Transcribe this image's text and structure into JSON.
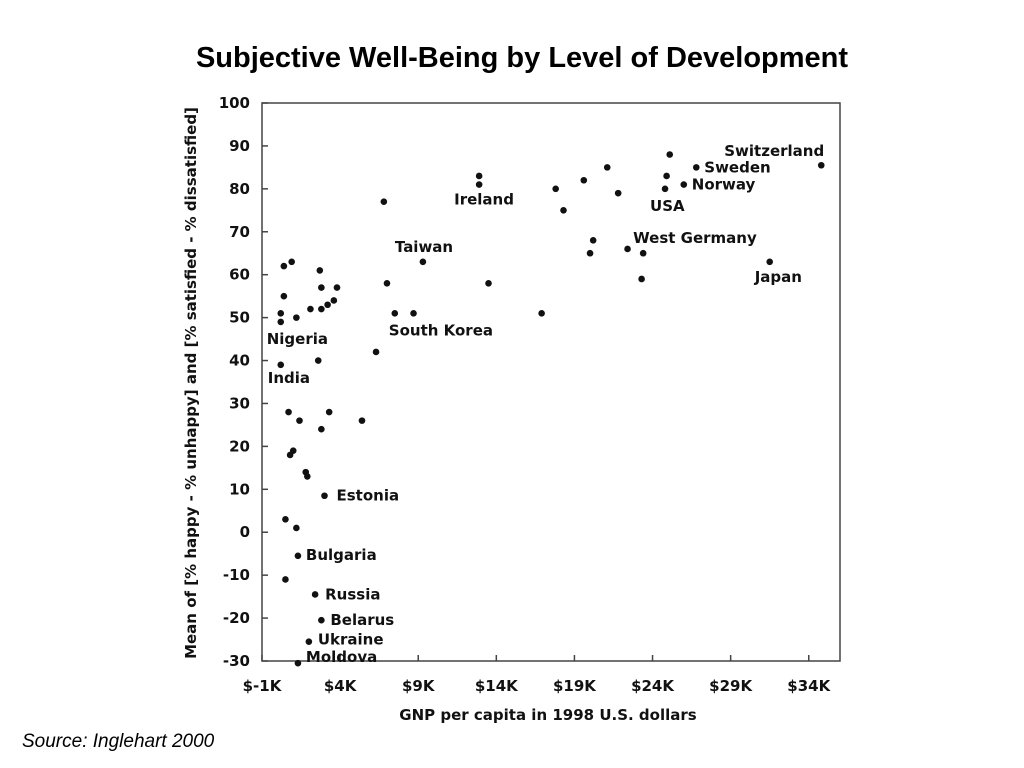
{
  "slide": {
    "title": "Subjective Well-Being by Level of Development",
    "source": "Source: Inglehart 2000"
  },
  "chart_data": {
    "type": "scatter",
    "title": "Subjective Well-Being by Level of Development",
    "xlabel": "GNP per capita in 1998 U.S. dollars",
    "ylabel": "Mean of [% happy - % unhappy] and [% satisfied - % dissatisfied]",
    "xlim": [
      -1000,
      36000
    ],
    "ylim": [
      -30,
      100
    ],
    "xticks": [
      -1000,
      4000,
      9000,
      14000,
      19000,
      24000,
      29000,
      34000
    ],
    "xtick_labels": [
      "$-1K",
      "$4K",
      "$9K",
      "$14K",
      "$19K",
      "$24K",
      "$29K",
      "$34K"
    ],
    "yticks": [
      -30,
      -20,
      -10,
      0,
      10,
      20,
      30,
      40,
      50,
      60,
      70,
      80,
      90,
      100
    ],
    "ytick_labels": [
      "-30",
      "-20",
      "-10",
      "0",
      "10",
      "20",
      "30",
      "40",
      "50",
      "60",
      "70",
      "80",
      "90",
      "100"
    ],
    "grid": false,
    "points": [
      {
        "x": 34800,
        "y": 85.5,
        "label": "Switzerland"
      },
      {
        "x": 26800,
        "y": 85,
        "label": "Sweden"
      },
      {
        "x": 26000,
        "y": 81,
        "label": "Norway"
      },
      {
        "x": 24800,
        "y": 80,
        "label": "USA"
      },
      {
        "x": 23400,
        "y": 65,
        "label": "West Germany"
      },
      {
        "x": 31500,
        "y": 63,
        "label": "Japan"
      },
      {
        "x": 12900,
        "y": 81,
        "label": "Ireland"
      },
      {
        "x": 9300,
        "y": 63,
        "label": "Taiwan"
      },
      {
        "x": 7500,
        "y": 51,
        "label": "South Korea"
      },
      {
        "x": 200,
        "y": 49,
        "label": "Nigeria"
      },
      {
        "x": 200,
        "y": 39,
        "label": "India"
      },
      {
        "x": 3000,
        "y": 8.5,
        "label": "Estonia"
      },
      {
        "x": 1300,
        "y": -5.5,
        "label": "Bulgaria"
      },
      {
        "x": 2400,
        "y": -14.5,
        "label": "Russia"
      },
      {
        "x": 2800,
        "y": -20.5,
        "label": "Belarus"
      },
      {
        "x": 2000,
        "y": -25.5,
        "label": "Ukraine"
      },
      {
        "x": 1300,
        "y": -30.5,
        "label": "Moldova"
      },
      {
        "x": 25100,
        "y": 88
      },
      {
        "x": 24900,
        "y": 83
      },
      {
        "x": 21100,
        "y": 85
      },
      {
        "x": 21800,
        "y": 79
      },
      {
        "x": 19600,
        "y": 82
      },
      {
        "x": 17800,
        "y": 80
      },
      {
        "x": 18300,
        "y": 75
      },
      {
        "x": 12900,
        "y": 83
      },
      {
        "x": 20000,
        "y": 65
      },
      {
        "x": 20200,
        "y": 68
      },
      {
        "x": 22400,
        "y": 66
      },
      {
        "x": 23300,
        "y": 59
      },
      {
        "x": 16900,
        "y": 51
      },
      {
        "x": 13500,
        "y": 58
      },
      {
        "x": 8700,
        "y": 51
      },
      {
        "x": 6800,
        "y": 77
      },
      {
        "x": 7000,
        "y": 58
      },
      {
        "x": 6300,
        "y": 42
      },
      {
        "x": 5400,
        "y": 26
      },
      {
        "x": 400,
        "y": 62
      },
      {
        "x": 900,
        "y": 63
      },
      {
        "x": 400,
        "y": 55
      },
      {
        "x": 1200,
        "y": 50
      },
      {
        "x": 200,
        "y": 51
      },
      {
        "x": 2700,
        "y": 61
      },
      {
        "x": 2800,
        "y": 57
      },
      {
        "x": 2100,
        "y": 52
      },
      {
        "x": 2800,
        "y": 52
      },
      {
        "x": 3200,
        "y": 53
      },
      {
        "x": 3600,
        "y": 54
      },
      {
        "x": 3800,
        "y": 57
      },
      {
        "x": 2600,
        "y": 40
      },
      {
        "x": 700,
        "y": 28
      },
      {
        "x": 1400,
        "y": 26
      },
      {
        "x": 3300,
        "y": 28
      },
      {
        "x": 2800,
        "y": 24
      },
      {
        "x": 1000,
        "y": 19
      },
      {
        "x": 800,
        "y": 18
      },
      {
        "x": 1800,
        "y": 14
      },
      {
        "x": 1900,
        "y": 13
      },
      {
        "x": 500,
        "y": 3
      },
      {
        "x": 1200,
        "y": 1
      },
      {
        "x": 500,
        "y": -11
      }
    ]
  },
  "colors": {
    "background": "#ffffff",
    "marker": "#111111",
    "axis": "#444444",
    "text": "#111111"
  }
}
